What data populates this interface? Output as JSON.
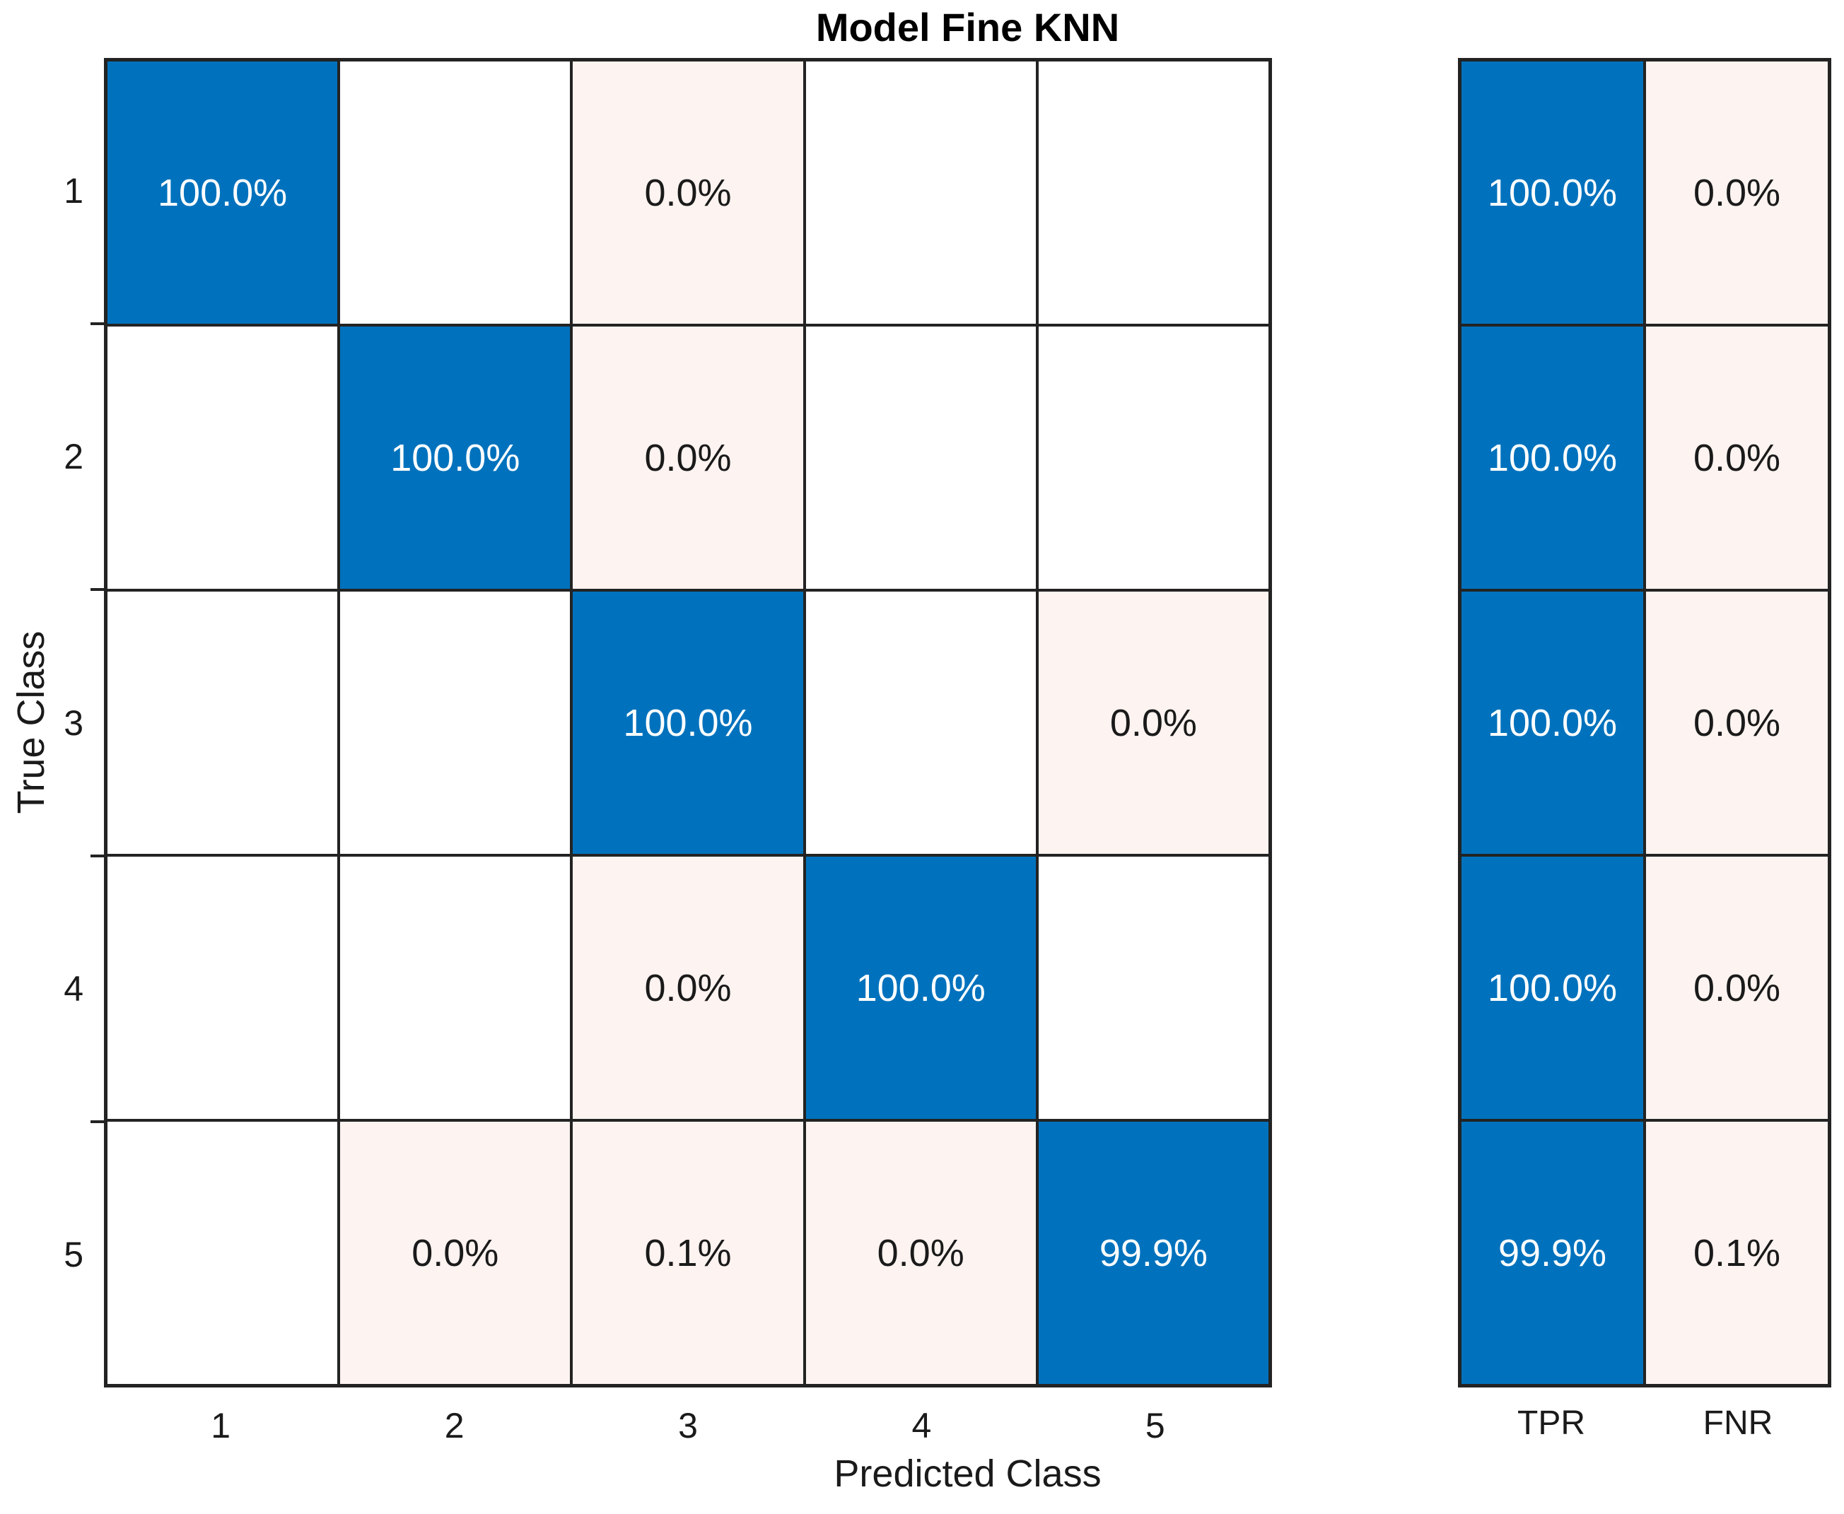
{
  "title": "Model Fine KNN",
  "colors": {
    "diagonal_blue": "#0072BD",
    "off_diagonal_tint": "#FDF3F0",
    "empty_cell": "#FFFFFF",
    "grid_line": "#232323",
    "text_on_blue": "#FFFFFF",
    "text_on_light": "#1A1A1A"
  },
  "chart_data": {
    "type": "heatmap",
    "subtype": "confusion-matrix",
    "title": "Model Fine KNN",
    "xlabel": "Predicted Class",
    "ylabel": "True Class",
    "x_tick_labels": [
      "1",
      "2",
      "3",
      "4",
      "5"
    ],
    "y_tick_labels": [
      "1",
      "2",
      "3",
      "4",
      "5"
    ],
    "values_percent": [
      [
        100.0,
        null,
        0.0,
        null,
        null
      ],
      [
        null,
        100.0,
        0.0,
        null,
        null
      ],
      [
        null,
        null,
        100.0,
        null,
        0.0
      ],
      [
        null,
        null,
        0.0,
        100.0,
        null
      ],
      [
        null,
        0.0,
        0.1,
        0.0,
        99.9
      ]
    ],
    "cells": [
      [
        {
          "label": "100.0%",
          "kind": "diag"
        },
        {
          "label": "",
          "kind": "empty"
        },
        {
          "label": "0.0%",
          "kind": "off"
        },
        {
          "label": "",
          "kind": "empty"
        },
        {
          "label": "",
          "kind": "empty"
        }
      ],
      [
        {
          "label": "",
          "kind": "empty"
        },
        {
          "label": "100.0%",
          "kind": "diag"
        },
        {
          "label": "0.0%",
          "kind": "off"
        },
        {
          "label": "",
          "kind": "empty"
        },
        {
          "label": "",
          "kind": "empty"
        }
      ],
      [
        {
          "label": "",
          "kind": "empty"
        },
        {
          "label": "",
          "kind": "empty"
        },
        {
          "label": "100.0%",
          "kind": "diag"
        },
        {
          "label": "",
          "kind": "empty"
        },
        {
          "label": "0.0%",
          "kind": "off"
        }
      ],
      [
        {
          "label": "",
          "kind": "empty"
        },
        {
          "label": "",
          "kind": "empty"
        },
        {
          "label": "0.0%",
          "kind": "off"
        },
        {
          "label": "100.0%",
          "kind": "diag"
        },
        {
          "label": "",
          "kind": "empty"
        }
      ],
      [
        {
          "label": "",
          "kind": "empty"
        },
        {
          "label": "0.0%",
          "kind": "off"
        },
        {
          "label": "0.1%",
          "kind": "off"
        },
        {
          "label": "0.0%",
          "kind": "off"
        },
        {
          "label": "99.9%",
          "kind": "diag"
        }
      ]
    ],
    "summary": {
      "columns": [
        "TPR",
        "FNR"
      ],
      "rows": [
        [
          {
            "label": "100.0%",
            "kind": "diag"
          },
          {
            "label": "0.0%",
            "kind": "off"
          }
        ],
        [
          {
            "label": "100.0%",
            "kind": "diag"
          },
          {
            "label": "0.0%",
            "kind": "off"
          }
        ],
        [
          {
            "label": "100.0%",
            "kind": "diag"
          },
          {
            "label": "0.0%",
            "kind": "off"
          }
        ],
        [
          {
            "label": "100.0%",
            "kind": "diag"
          },
          {
            "label": "0.0%",
            "kind": "off"
          }
        ],
        [
          {
            "label": "99.9%",
            "kind": "diag"
          },
          {
            "label": "0.1%",
            "kind": "off"
          }
        ]
      ]
    },
    "legend": "none",
    "grid": "on"
  }
}
